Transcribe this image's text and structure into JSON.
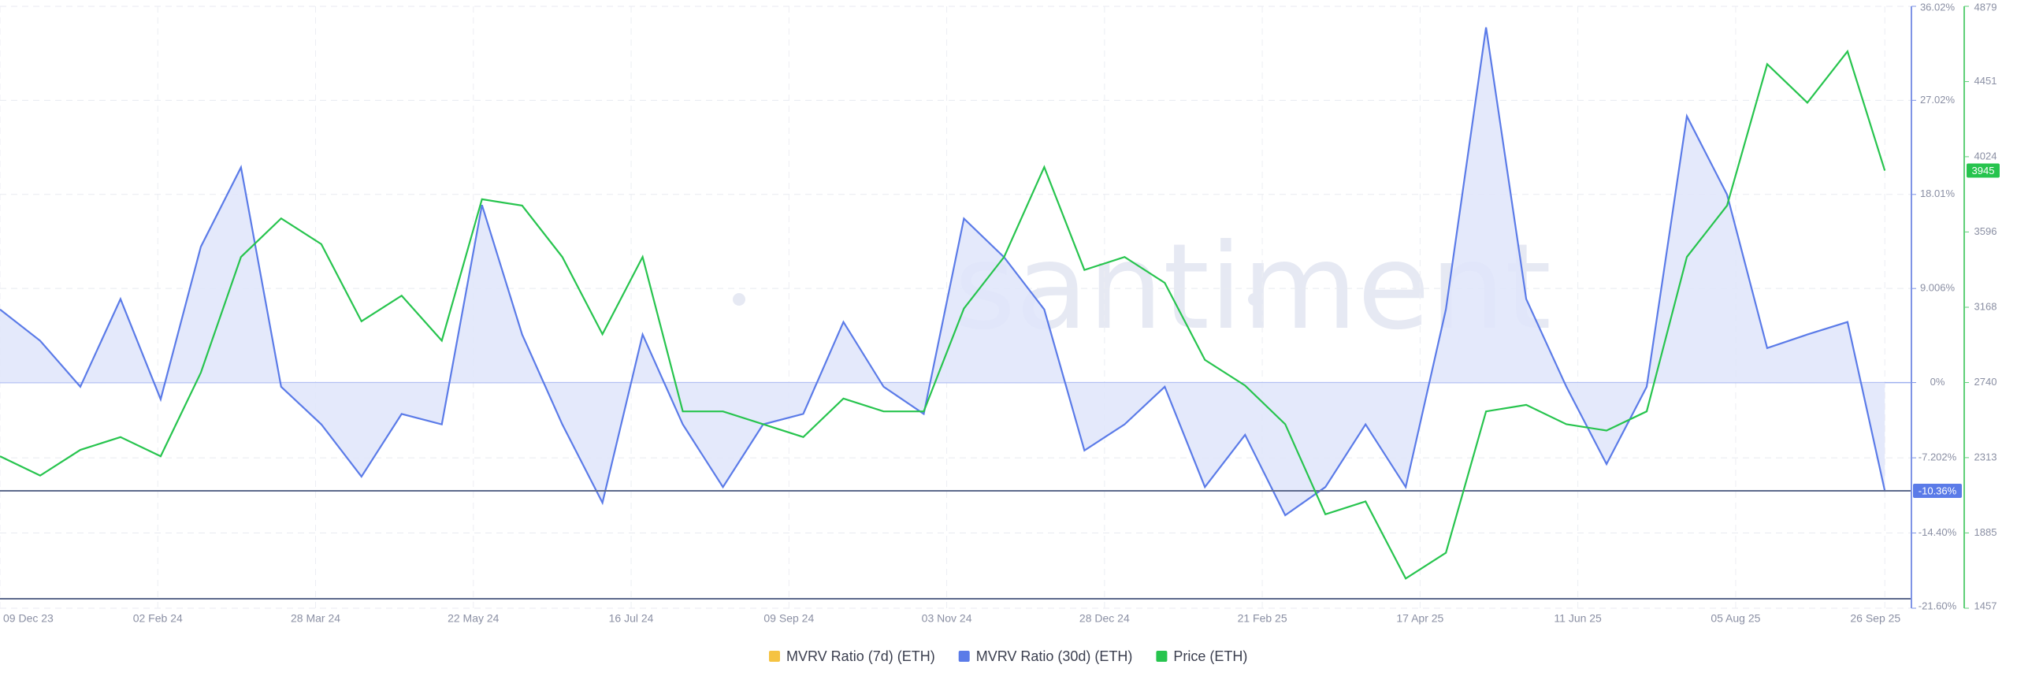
{
  "chart_data": {
    "type": "line",
    "watermark": "santiment",
    "x": [
      "2023-12-09",
      "2023-12-23",
      "2024-01-06",
      "2024-01-20",
      "2024-02-03",
      "2024-02-17",
      "2024-03-02",
      "2024-03-16",
      "2024-03-30",
      "2024-04-13",
      "2024-04-27",
      "2024-05-11",
      "2024-05-25",
      "2024-06-08",
      "2024-06-22",
      "2024-07-06",
      "2024-07-20",
      "2024-08-03",
      "2024-08-17",
      "2024-08-31",
      "2024-09-14",
      "2024-09-28",
      "2024-10-12",
      "2024-10-26",
      "2024-11-09",
      "2024-11-23",
      "2024-12-07",
      "2024-12-21",
      "2025-01-04",
      "2025-01-18",
      "2025-02-01",
      "2025-02-15",
      "2025-03-01",
      "2025-03-15",
      "2025-03-29",
      "2025-04-12",
      "2025-04-26",
      "2025-05-10",
      "2025-05-24",
      "2025-06-07",
      "2025-06-21",
      "2025-07-05",
      "2025-07-19",
      "2025-08-02",
      "2025-08-16",
      "2025-08-30",
      "2025-09-13",
      "2025-09-26"
    ],
    "xlim": [
      "2023-12-09",
      "2025-10-05"
    ],
    "xticks": [
      {
        "value": "2023-12-09",
        "label": "09 Dec 23"
      },
      {
        "value": "2024-02-02",
        "label": "02 Feb 24"
      },
      {
        "value": "2024-03-28",
        "label": "28 Mar 24"
      },
      {
        "value": "2024-05-22",
        "label": "22 May 24"
      },
      {
        "value": "2024-07-16",
        "label": "16 Jul 24"
      },
      {
        "value": "2024-09-09",
        "label": "09 Sep 24"
      },
      {
        "value": "2024-11-03",
        "label": "03 Nov 24"
      },
      {
        "value": "2024-12-28",
        "label": "28 Dec 24"
      },
      {
        "value": "2025-02-21",
        "label": "21 Feb 25"
      },
      {
        "value": "2025-04-17",
        "label": "17 Apr 25"
      },
      {
        "value": "2025-06-11",
        "label": "11 Jun 25"
      },
      {
        "value": "2025-08-05",
        "label": "05 Aug 25"
      },
      {
        "value": "2025-09-26",
        "label": "26 Sep 25"
      }
    ],
    "ylim": [
      -21.6,
      36.02
    ],
    "yticks": [
      {
        "value": 36.02,
        "label": "36.02%"
      },
      {
        "value": 27.02,
        "label": "27.02%"
      },
      {
        "value": 18.01,
        "label": "18.01%"
      },
      {
        "value": 9.006,
        "label": "9.006%"
      },
      {
        "value": 0,
        "label": "0%"
      },
      {
        "value": -7.202,
        "label": "-7.202%"
      },
      {
        "value": -14.4,
        "label": "-14.40%"
      },
      {
        "value": -21.6,
        "label": "-21.60%"
      }
    ],
    "y2lim": [
      1457,
      4879
    ],
    "y2ticks": [
      4879,
      4451,
      4024,
      3596,
      3168,
      2740,
      2313,
      1885,
      1457
    ],
    "grid": true,
    "legend": "bottom",
    "series": [
      {
        "name": "MVRV Ratio (7d) (ETH)",
        "color": "#f5c342",
        "values": [
          null,
          null,
          null,
          null,
          null,
          null,
          null,
          null,
          null,
          null,
          null,
          null,
          null,
          null,
          null,
          null,
          null,
          null,
          null,
          null,
          null,
          null,
          null,
          null,
          null,
          null,
          null,
          null,
          null,
          null,
          null,
          null,
          null,
          null,
          null,
          null,
          null,
          null,
          null,
          null,
          null,
          null,
          null,
          null,
          null,
          null,
          null,
          null
        ]
      },
      {
        "name": "MVRV Ratio (30d) (ETH)",
        "color": "#5b7be8",
        "area_color": "#dfe5fa",
        "values": [
          7,
          4,
          -0.4,
          8,
          -1.6,
          13,
          20.6,
          -0.4,
          -4,
          -9,
          -3,
          -4,
          17,
          4.6,
          -4,
          -11.5,
          4.6,
          -4,
          -10,
          -4,
          -3,
          5.8,
          -0.4,
          -3,
          15.7,
          12,
          7,
          -6.5,
          -4,
          -0.4,
          -10,
          -5,
          -12.7,
          -10,
          -4,
          -10,
          7,
          34,
          8,
          -0.4,
          -7.8,
          -0.4,
          25.5,
          18,
          3.3,
          4.6,
          5.8,
          -10.36
        ],
        "value_labels": [
          null,
          null,
          null,
          null,
          null,
          null,
          null,
          null,
          null,
          null,
          null,
          null,
          null,
          null,
          null,
          null,
          null,
          null,
          null,
          null,
          null,
          null,
          null,
          null,
          null,
          null,
          null,
          null,
          null,
          null,
          null,
          null,
          null,
          null,
          null,
          null,
          null,
          null,
          null,
          null,
          null,
          null,
          null,
          null,
          null,
          null,
          null,
          "-10.36%"
        ]
      },
      {
        "name": "Price (ETH)",
        "color": "#27c44e",
        "axis": "y2",
        "values": [
          2321,
          2211,
          2357,
          2430,
          2321,
          2796,
          3454,
          3673,
          3527,
          3088,
          3234,
          2978,
          3782,
          3746,
          3454,
          3015,
          3454,
          2576,
          2576,
          2503,
          2430,
          2649,
          2576,
          2576,
          3161,
          3454,
          3965,
          3380,
          3454,
          3307,
          2869,
          2723,
          2503,
          1991,
          2064,
          1626,
          1772,
          2576,
          2613,
          2503,
          2467,
          2576,
          3454,
          3746,
          4550,
          4331,
          4623,
          3945
        ]
      }
    ]
  }
}
